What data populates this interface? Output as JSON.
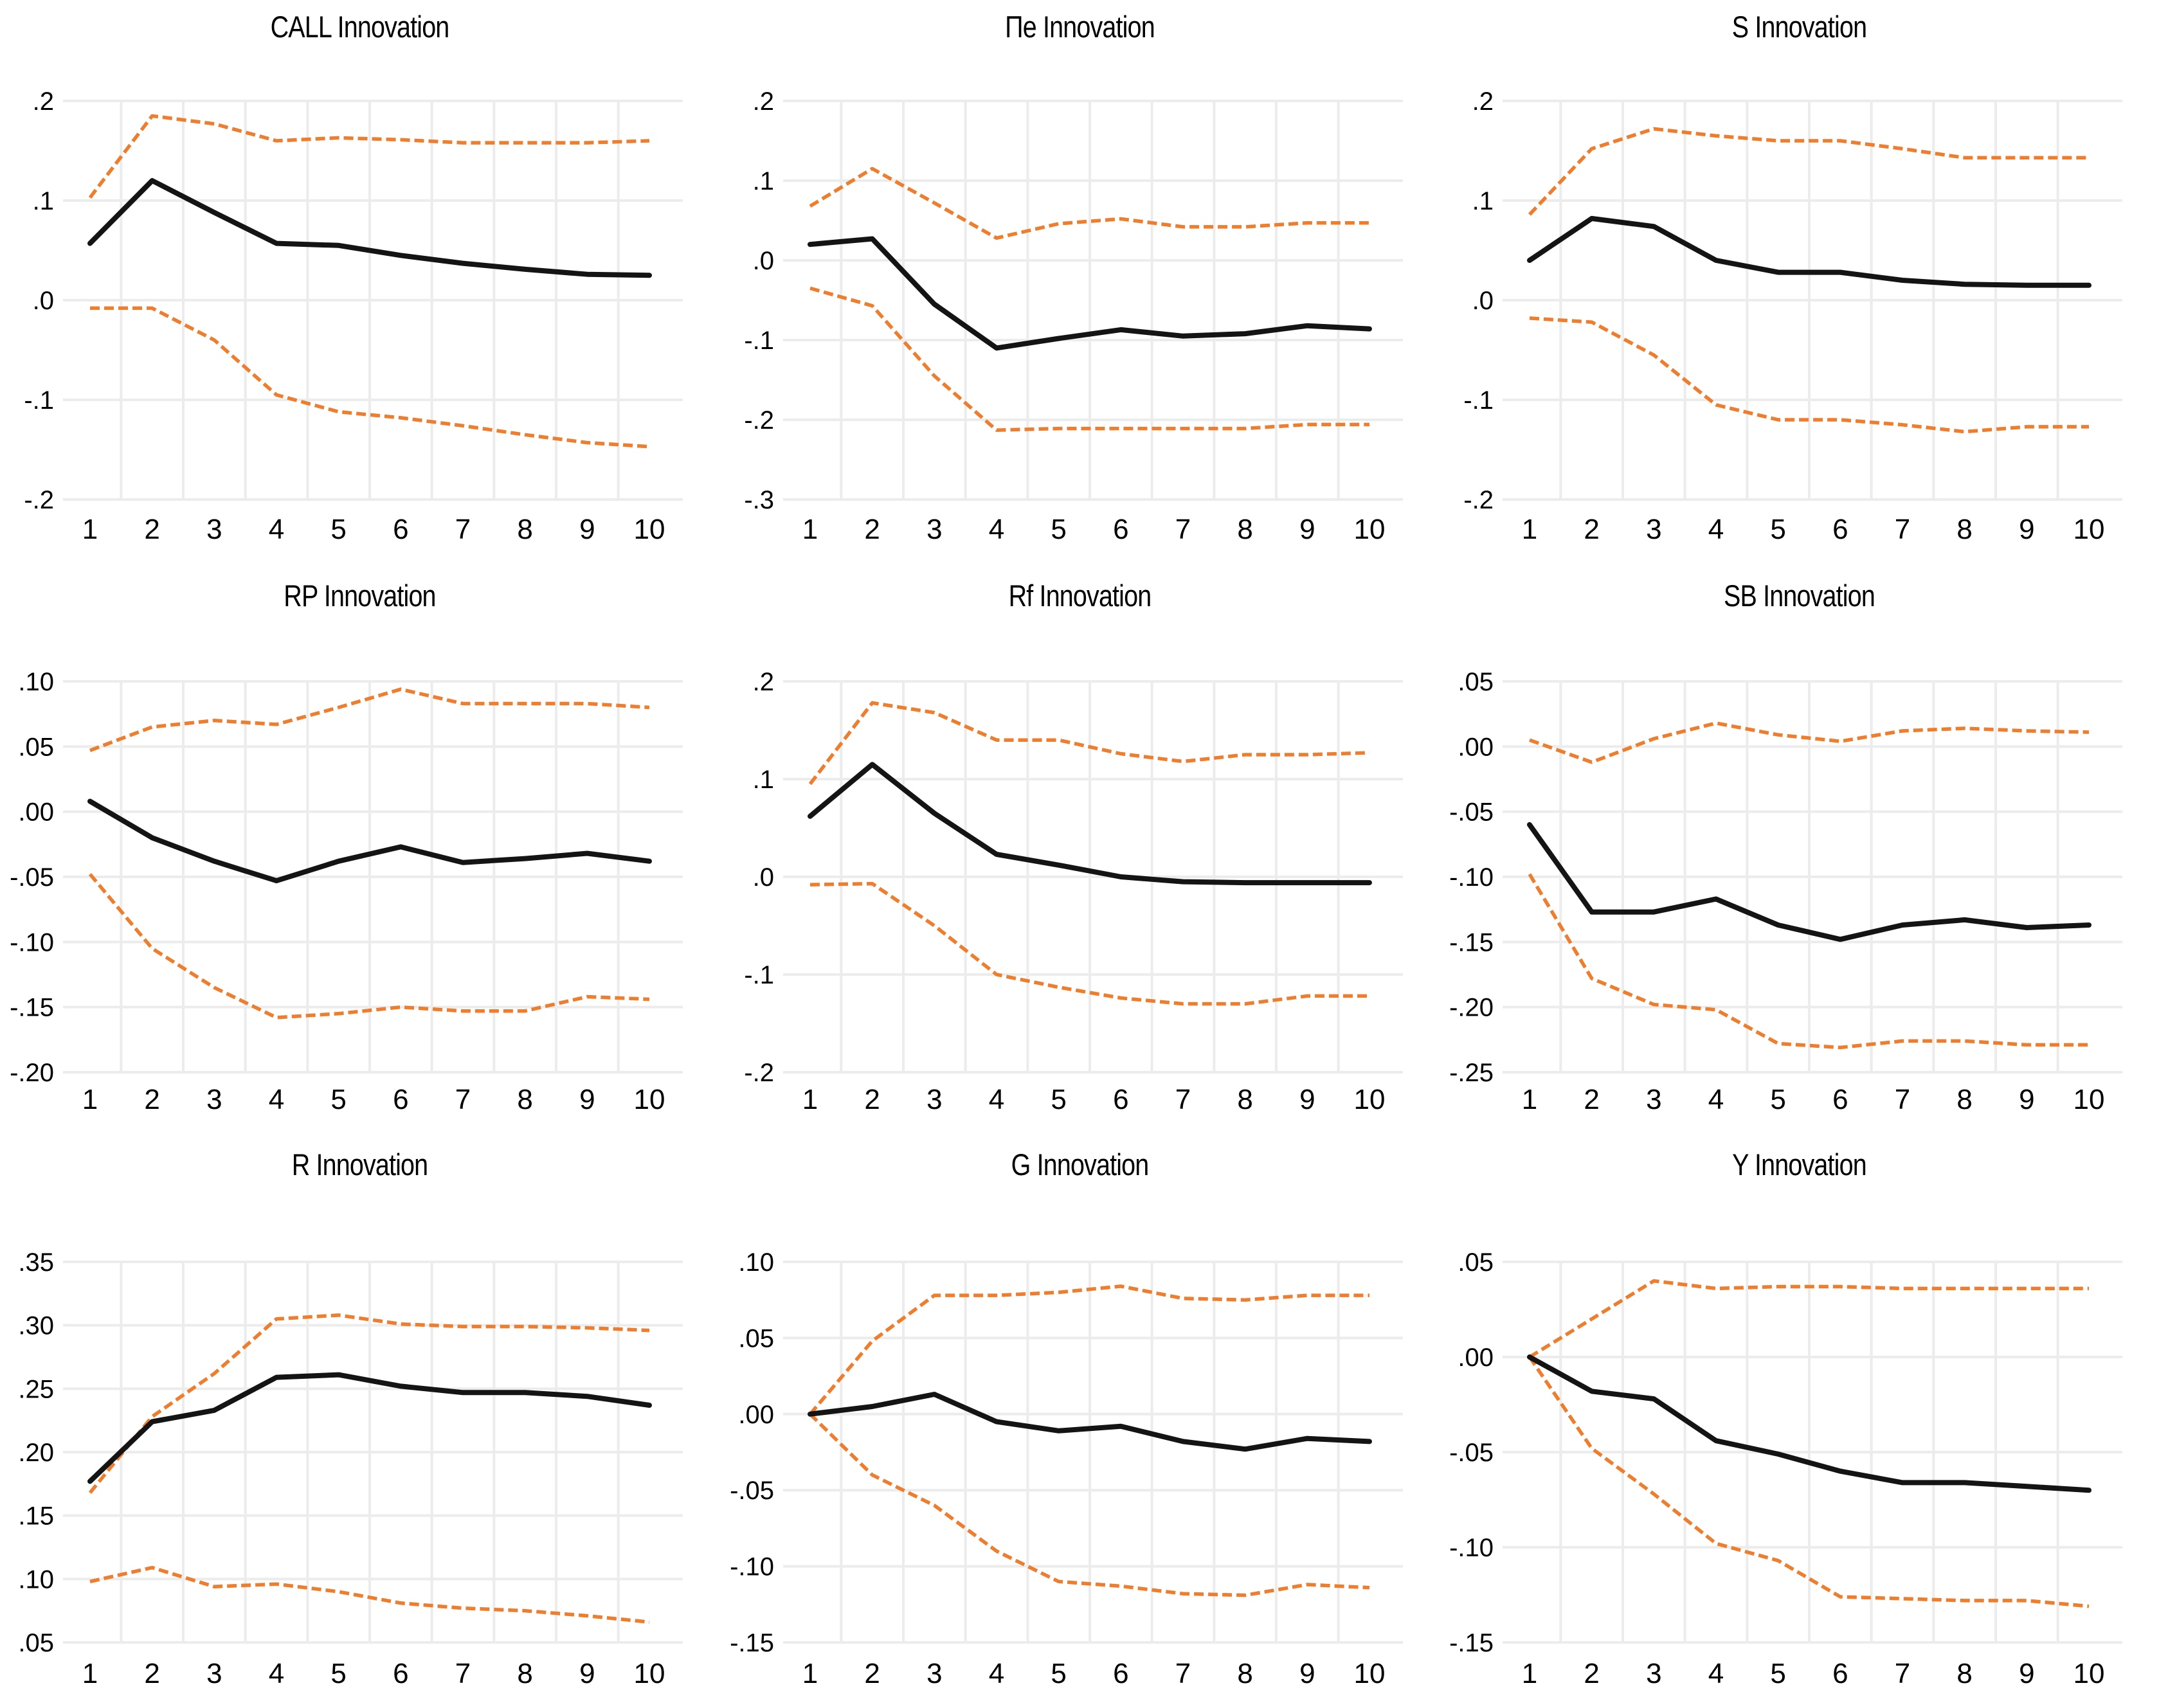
{
  "page": {
    "background": "#ffffff"
  },
  "style": {
    "response_line_color": "#141414",
    "confidence_band_color": "#ee7d2e",
    "grid_color": "#ececec",
    "text_color": "#000000"
  },
  "x_tick_labels": [
    "1",
    "2",
    "3",
    "4",
    "5",
    "6",
    "7",
    "8",
    "9",
    "10"
  ],
  "chart_data": [
    {
      "type": "line",
      "title": "CALL Innovation",
      "x": [
        1,
        2,
        3,
        4,
        5,
        6,
        7,
        8,
        9,
        10
      ],
      "ylim": [
        -0.2,
        0.2
      ],
      "yticks": [
        {
          "v": 0.2,
          "label": ".2"
        },
        {
          "v": 0.1,
          "label": ".1"
        },
        {
          "v": 0.0,
          "label": ".0"
        },
        {
          "v": -0.1,
          "label": "-.1"
        },
        {
          "v": -0.2,
          "label": "-.2"
        }
      ],
      "series": [
        {
          "name": "response",
          "style": "solid",
          "values": [
            0.057,
            0.12,
            0.088,
            0.057,
            0.055,
            0.045,
            0.037,
            0.031,
            0.026,
            0.025
          ]
        },
        {
          "name": "upper_band",
          "style": "dashed",
          "values": [
            0.103,
            0.185,
            0.177,
            0.16,
            0.163,
            0.161,
            0.158,
            0.158,
            0.158,
            0.16
          ]
        },
        {
          "name": "lower_band",
          "style": "dashed",
          "values": [
            -0.008,
            -0.008,
            -0.04,
            -0.095,
            -0.112,
            -0.118,
            -0.126,
            -0.135,
            -0.143,
            -0.147
          ]
        }
      ]
    },
    {
      "type": "line",
      "title": "Πe Innovation",
      "x": [
        1,
        2,
        3,
        4,
        5,
        6,
        7,
        8,
        9,
        10
      ],
      "ylim": [
        -0.3,
        0.2
      ],
      "yticks": [
        {
          "v": 0.2,
          "label": ".2"
        },
        {
          "v": 0.1,
          "label": ".1"
        },
        {
          "v": 0.0,
          "label": ".0"
        },
        {
          "v": -0.1,
          "label": "-.1"
        },
        {
          "v": -0.2,
          "label": "-.2"
        },
        {
          "v": -0.3,
          "label": "-.3"
        }
      ],
      "series": [
        {
          "name": "response",
          "style": "solid",
          "values": [
            0.02,
            0.027,
            -0.055,
            -0.11,
            -0.098,
            -0.087,
            -0.095,
            -0.092,
            -0.082,
            -0.086
          ]
        },
        {
          "name": "upper_band",
          "style": "dashed",
          "values": [
            0.068,
            0.115,
            0.072,
            0.028,
            0.046,
            0.052,
            0.042,
            0.042,
            0.047,
            0.047
          ]
        },
        {
          "name": "lower_band",
          "style": "dashed",
          "values": [
            -0.035,
            -0.057,
            -0.145,
            -0.213,
            -0.211,
            -0.211,
            -0.211,
            -0.211,
            -0.206,
            -0.206
          ]
        }
      ]
    },
    {
      "type": "line",
      "title": "S Innovation",
      "x": [
        1,
        2,
        3,
        4,
        5,
        6,
        7,
        8,
        9,
        10
      ],
      "ylim": [
        -0.2,
        0.2
      ],
      "yticks": [
        {
          "v": 0.2,
          "label": ".2"
        },
        {
          "v": 0.1,
          "label": ".1"
        },
        {
          "v": 0.0,
          "label": ".0"
        },
        {
          "v": -0.1,
          "label": "-.1"
        },
        {
          "v": -0.2,
          "label": "-.2"
        }
      ],
      "series": [
        {
          "name": "response",
          "style": "solid",
          "values": [
            0.04,
            0.082,
            0.074,
            0.04,
            0.028,
            0.028,
            0.02,
            0.016,
            0.015,
            0.015
          ]
        },
        {
          "name": "upper_band",
          "style": "dashed",
          "values": [
            0.086,
            0.152,
            0.172,
            0.165,
            0.16,
            0.16,
            0.152,
            0.143,
            0.143,
            0.143
          ]
        },
        {
          "name": "lower_band",
          "style": "dashed",
          "values": [
            -0.018,
            -0.022,
            -0.055,
            -0.105,
            -0.12,
            -0.12,
            -0.125,
            -0.132,
            -0.127,
            -0.127
          ]
        }
      ]
    },
    {
      "type": "line",
      "title": "RP Innovation",
      "x": [
        1,
        2,
        3,
        4,
        5,
        6,
        7,
        8,
        9,
        10
      ],
      "ylim": [
        -0.2,
        0.1
      ],
      "yticks": [
        {
          "v": 0.1,
          "label": ".10"
        },
        {
          "v": 0.05,
          "label": ".05"
        },
        {
          "v": 0.0,
          "label": ".00"
        },
        {
          "v": -0.05,
          "label": "-.05"
        },
        {
          "v": -0.1,
          "label": "-.10"
        },
        {
          "v": -0.15,
          "label": "-.15"
        },
        {
          "v": -0.2,
          "label": "-.20"
        }
      ],
      "series": [
        {
          "name": "response",
          "style": "solid",
          "values": [
            0.008,
            -0.02,
            -0.038,
            -0.053,
            -0.038,
            -0.027,
            -0.039,
            -0.036,
            -0.032,
            -0.038
          ]
        },
        {
          "name": "upper_band",
          "style": "dashed",
          "values": [
            0.047,
            0.065,
            0.07,
            0.067,
            0.08,
            0.094,
            0.083,
            0.083,
            0.083,
            0.08
          ]
        },
        {
          "name": "lower_band",
          "style": "dashed",
          "values": [
            -0.048,
            -0.105,
            -0.135,
            -0.158,
            -0.155,
            -0.15,
            -0.153,
            -0.153,
            -0.142,
            -0.144
          ]
        }
      ]
    },
    {
      "type": "line",
      "title": "Rf Innovation",
      "x": [
        1,
        2,
        3,
        4,
        5,
        6,
        7,
        8,
        9,
        10
      ],
      "ylim": [
        -0.2,
        0.2
      ],
      "yticks": [
        {
          "v": 0.2,
          "label": ".2"
        },
        {
          "v": 0.1,
          "label": ".1"
        },
        {
          "v": 0.0,
          "label": ".0"
        },
        {
          "v": -0.1,
          "label": "-.1"
        },
        {
          "v": -0.2,
          "label": "-.2"
        }
      ],
      "series": [
        {
          "name": "response",
          "style": "solid",
          "values": [
            0.062,
            0.115,
            0.065,
            0.023,
            0.012,
            0.0,
            -0.005,
            -0.006,
            -0.006,
            -0.006
          ]
        },
        {
          "name": "upper_band",
          "style": "dashed",
          "values": [
            0.095,
            0.178,
            0.168,
            0.14,
            0.14,
            0.126,
            0.118,
            0.125,
            0.125,
            0.127
          ]
        },
        {
          "name": "lower_band",
          "style": "dashed",
          "values": [
            -0.008,
            -0.007,
            -0.05,
            -0.1,
            -0.113,
            -0.124,
            -0.13,
            -0.13,
            -0.122,
            -0.122
          ]
        }
      ]
    },
    {
      "type": "line",
      "title": "SB Innovation",
      "x": [
        1,
        2,
        3,
        4,
        5,
        6,
        7,
        8,
        9,
        10
      ],
      "ylim": [
        -0.25,
        0.05
      ],
      "yticks": [
        {
          "v": 0.05,
          "label": ".05"
        },
        {
          "v": 0.0,
          "label": ".00"
        },
        {
          "v": -0.05,
          "label": "-.05"
        },
        {
          "v": -0.1,
          "label": "-.10"
        },
        {
          "v": -0.15,
          "label": "-.15"
        },
        {
          "v": -0.2,
          "label": "-.20"
        },
        {
          "v": -0.25,
          "label": "-.25"
        }
      ],
      "series": [
        {
          "name": "response",
          "style": "solid",
          "values": [
            -0.06,
            -0.127,
            -0.127,
            -0.117,
            -0.137,
            -0.148,
            -0.137,
            -0.133,
            -0.139,
            -0.137
          ]
        },
        {
          "name": "upper_band",
          "style": "dashed",
          "values": [
            0.005,
            -0.012,
            0.006,
            0.018,
            0.009,
            0.004,
            0.012,
            0.014,
            0.012,
            0.011
          ]
        },
        {
          "name": "lower_band",
          "style": "dashed",
          "values": [
            -0.098,
            -0.178,
            -0.198,
            -0.202,
            -0.228,
            -0.231,
            -0.226,
            -0.226,
            -0.229,
            -0.229
          ]
        }
      ]
    },
    {
      "type": "line",
      "title": "R Innovation",
      "x": [
        1,
        2,
        3,
        4,
        5,
        6,
        7,
        8,
        9,
        10
      ],
      "ylim": [
        0.05,
        0.35
      ],
      "yticks": [
        {
          "v": 0.35,
          "label": ".35"
        },
        {
          "v": 0.3,
          "label": ".30"
        },
        {
          "v": 0.25,
          "label": ".25"
        },
        {
          "v": 0.2,
          "label": ".20"
        },
        {
          "v": 0.15,
          "label": ".15"
        },
        {
          "v": 0.1,
          "label": ".10"
        },
        {
          "v": 0.05,
          "label": ".05"
        }
      ],
      "series": [
        {
          "name": "response",
          "style": "solid",
          "values": [
            0.177,
            0.224,
            0.233,
            0.259,
            0.261,
            0.252,
            0.247,
            0.247,
            0.244,
            0.237
          ]
        },
        {
          "name": "upper_band",
          "style": "dashed",
          "values": [
            0.168,
            0.228,
            0.262,
            0.305,
            0.308,
            0.301,
            0.299,
            0.299,
            0.298,
            0.296
          ]
        },
        {
          "name": "lower_band",
          "style": "dashed",
          "values": [
            0.098,
            0.109,
            0.094,
            0.096,
            0.09,
            0.081,
            0.077,
            0.075,
            0.071,
            0.066
          ]
        }
      ]
    },
    {
      "type": "line",
      "title": "G Innovation",
      "x": [
        1,
        2,
        3,
        4,
        5,
        6,
        7,
        8,
        9,
        10
      ],
      "ylim": [
        -0.15,
        0.1
      ],
      "yticks": [
        {
          "v": 0.1,
          "label": ".10"
        },
        {
          "v": 0.05,
          "label": ".05"
        },
        {
          "v": 0.0,
          "label": ".00"
        },
        {
          "v": -0.05,
          "label": "-.05"
        },
        {
          "v": -0.1,
          "label": "-.10"
        },
        {
          "v": -0.15,
          "label": "-.15"
        }
      ],
      "series": [
        {
          "name": "response",
          "style": "solid",
          "values": [
            0.0,
            0.005,
            0.013,
            -0.005,
            -0.011,
            -0.008,
            -0.018,
            -0.023,
            -0.016,
            -0.018
          ]
        },
        {
          "name": "upper_band",
          "style": "dashed",
          "values": [
            0.0,
            0.048,
            0.078,
            0.078,
            0.08,
            0.084,
            0.076,
            0.075,
            0.078,
            0.078
          ]
        },
        {
          "name": "lower_band",
          "style": "dashed",
          "values": [
            0.0,
            -0.04,
            -0.06,
            -0.09,
            -0.11,
            -0.113,
            -0.118,
            -0.119,
            -0.112,
            -0.114
          ]
        }
      ]
    },
    {
      "type": "line",
      "title": "Y Innovation",
      "x": [
        1,
        2,
        3,
        4,
        5,
        6,
        7,
        8,
        9,
        10
      ],
      "ylim": [
        -0.15,
        0.05
      ],
      "yticks": [
        {
          "v": 0.05,
          "label": ".05"
        },
        {
          "v": 0.0,
          "label": ".00"
        },
        {
          "v": -0.05,
          "label": "-.05"
        },
        {
          "v": -0.1,
          "label": "-.10"
        },
        {
          "v": -0.15,
          "label": "-.15"
        }
      ],
      "series": [
        {
          "name": "response",
          "style": "solid",
          "values": [
            0.0,
            -0.018,
            -0.022,
            -0.044,
            -0.051,
            -0.06,
            -0.066,
            -0.066,
            -0.068,
            -0.07
          ]
        },
        {
          "name": "upper_band",
          "style": "dashed",
          "values": [
            0.0,
            0.02,
            0.04,
            0.036,
            0.037,
            0.037,
            0.036,
            0.036,
            0.036,
            0.036
          ]
        },
        {
          "name": "lower_band",
          "style": "dashed",
          "values": [
            0.0,
            -0.048,
            -0.072,
            -0.098,
            -0.107,
            -0.126,
            -0.127,
            -0.128,
            -0.128,
            -0.131
          ]
        }
      ]
    }
  ]
}
